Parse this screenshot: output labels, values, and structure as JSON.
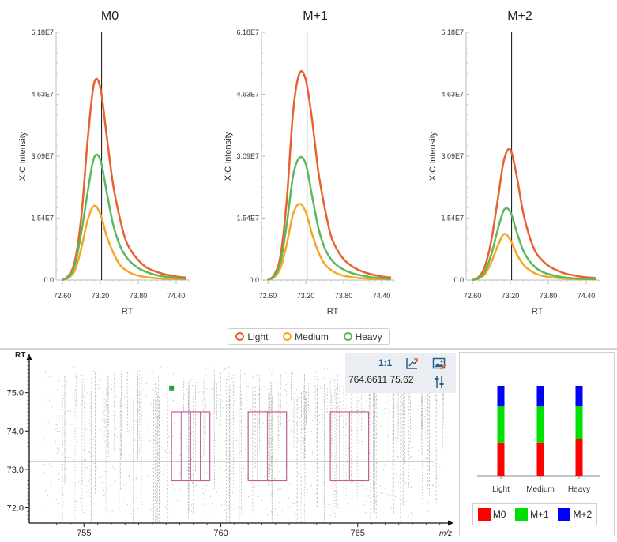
{
  "colors": {
    "light": "#e8622f",
    "medium": "#f5a623",
    "heavy": "#5cb85c",
    "m0": "#ff0000",
    "m1": "#00e000",
    "m2": "#0000ff",
    "box": "#c0609a"
  },
  "xic_legend": {
    "items": [
      {
        "label": "Light",
        "color": "#e8622f"
      },
      {
        "label": "Medium",
        "color": "#f5a623"
      },
      {
        "label": "Heavy",
        "color": "#5cb85c"
      }
    ]
  },
  "chart_data": [
    {
      "type": "line",
      "title": "M0",
      "xlabel": "RT",
      "ylabel": "XIC Intensity",
      "xticks": [
        "72.60",
        "73.20",
        "73.80",
        "74.40"
      ],
      "yticks": [
        "0.0",
        "1.54E7",
        "3.09E7",
        "4.63E7",
        "6.18E7"
      ],
      "xlim": [
        72.6,
        74.6
      ],
      "ylim": [
        0,
        61800000
      ],
      "marker_rt": 73.22,
      "x": [
        72.6,
        72.7,
        72.8,
        72.9,
        73.0,
        73.1,
        73.2,
        73.3,
        73.4,
        73.5,
        73.6,
        73.7,
        73.8,
        73.9,
        74.0,
        74.1,
        74.2,
        74.3,
        74.4,
        74.55
      ],
      "series": [
        {
          "name": "Light",
          "values": [
            0,
            1200000,
            5000000,
            16000000,
            35000000,
            49000000,
            48000000,
            36000000,
            24000000,
            16000000,
            10000000,
            7000000,
            5000000,
            3500000,
            2600000,
            2000000,
            1500000,
            1200000,
            900000,
            600000
          ]
        },
        {
          "name": "Medium",
          "values": [
            0,
            600000,
            2500000,
            8000000,
            15000000,
            18500000,
            16500000,
            11000000,
            7000000,
            4000000,
            2500000,
            1600000,
            1100000,
            800000,
            600000,
            450000,
            350000,
            300000,
            250000,
            200000
          ]
        },
        {
          "name": "Heavy",
          "values": [
            0,
            900000,
            4000000,
            12000000,
            22000000,
            30500000,
            30000000,
            22000000,
            14000000,
            9000000,
            6000000,
            4200000,
            3000000,
            2200000,
            1600000,
            1200000,
            900000,
            700000,
            500000,
            350000
          ]
        }
      ]
    },
    {
      "type": "line",
      "title": "M+1",
      "xlabel": "RT",
      "ylabel": "XIC Intensity",
      "xticks": [
        "72.60",
        "73.20",
        "73.80",
        "74.40"
      ],
      "yticks": [
        "0.0",
        "1.54E7",
        "3.09E7",
        "4.63E7",
        "6.18E7"
      ],
      "xlim": [
        72.6,
        74.6
      ],
      "ylim": [
        0,
        61800000
      ],
      "marker_rt": 73.22,
      "x": [
        72.6,
        72.7,
        72.8,
        72.9,
        73.0,
        73.1,
        73.2,
        73.3,
        73.4,
        73.5,
        73.6,
        73.7,
        73.8,
        73.9,
        74.0,
        74.1,
        74.2,
        74.3,
        74.4,
        74.55
      ],
      "series": [
        {
          "name": "Light",
          "values": [
            0,
            1300000,
            6000000,
            20000000,
            42000000,
            51500000,
            50000000,
            40000000,
            27000000,
            18000000,
            11000000,
            7500000,
            5200000,
            3800000,
            2800000,
            2100000,
            1600000,
            1200000,
            900000,
            600000
          ]
        },
        {
          "name": "Medium",
          "values": [
            0,
            700000,
            3000000,
            9000000,
            16500000,
            19000000,
            17000000,
            11500000,
            7000000,
            4000000,
            2500000,
            1600000,
            1100000,
            800000,
            600000,
            450000,
            350000,
            300000,
            250000,
            200000
          ]
        },
        {
          "name": "Heavy",
          "values": [
            0,
            1000000,
            4500000,
            14000000,
            26000000,
            30500000,
            29000000,
            21000000,
            13000000,
            8000000,
            5200000,
            3600000,
            2600000,
            1900000,
            1400000,
            1100000,
            800000,
            600000,
            450000,
            300000
          ]
        }
      ]
    },
    {
      "type": "line",
      "title": "M+2",
      "xlabel": "RT",
      "ylabel": "XIC Intensity",
      "xticks": [
        "72.60",
        "73.20",
        "73.80",
        "74.40"
      ],
      "yticks": [
        "0.0",
        "1.54E7",
        "3.09E7",
        "4.63E7",
        "6.18E7"
      ],
      "xlim": [
        72.6,
        74.6
      ],
      "ylim": [
        0,
        61800000
      ],
      "marker_rt": 73.22,
      "x": [
        72.6,
        72.7,
        72.8,
        72.9,
        73.0,
        73.1,
        73.2,
        73.3,
        73.4,
        73.5,
        73.6,
        73.7,
        73.8,
        73.9,
        74.0,
        74.1,
        74.2,
        74.3,
        74.4,
        74.55
      ],
      "series": [
        {
          "name": "Light",
          "values": [
            0,
            800000,
            3500000,
            10000000,
            20000000,
            30000000,
            32500000,
            26000000,
            17000000,
            11000000,
            7000000,
            5000000,
            3600000,
            2700000,
            2000000,
            1500000,
            1200000,
            900000,
            700000,
            500000
          ]
        },
        {
          "name": "Medium",
          "values": [
            0,
            400000,
            1500000,
            4500000,
            8500000,
            11500000,
            10000000,
            6500000,
            4000000,
            2500000,
            1600000,
            1100000,
            800000,
            600000,
            450000,
            350000,
            280000,
            220000,
            180000,
            140000
          ]
        },
        {
          "name": "Heavy",
          "values": [
            0,
            500000,
            2200000,
            6500000,
            12500000,
            17500000,
            17000000,
            12000000,
            7500000,
            4800000,
            3100000,
            2100000,
            1500000,
            1100000,
            800000,
            600000,
            450000,
            350000,
            280000,
            200000
          ]
        }
      ]
    },
    {
      "type": "scatter",
      "title": "",
      "xlabel": "m/z",
      "ylabel": "RT",
      "xticks": [
        "755",
        "760",
        "765"
      ],
      "yticks": [
        "72.0",
        "73.0",
        "74.0",
        "75.0"
      ],
      "xlim": [
        753.0,
        768.5
      ],
      "ylim": [
        71.6,
        76.0
      ],
      "cursor": {
        "mz": 764.6611,
        "rt": 75.62
      },
      "crosshair_rt": 73.2,
      "marker_point": {
        "mz": 758.2,
        "rt": 75.12
      },
      "isotope_boxes": [
        {
          "mz_start": 758.2,
          "mz_end": 759.6,
          "rt_start": 72.7,
          "rt_end": 74.5
        },
        {
          "mz_start": 761.0,
          "mz_end": 762.4,
          "rt_start": 72.7,
          "rt_end": 74.5
        },
        {
          "mz_start": 764.0,
          "mz_end": 765.4,
          "rt_start": 72.7,
          "rt_end": 74.5
        }
      ]
    },
    {
      "type": "bar",
      "title": "",
      "stacked": true,
      "categories": [
        "Light",
        "Medium",
        "Heavy"
      ],
      "series": [
        {
          "name": "M0",
          "values": [
            0.37,
            0.37,
            0.41
          ]
        },
        {
          "name": "M+1",
          "values": [
            0.4,
            0.4,
            0.37
          ]
        },
        {
          "name": "M+2",
          "values": [
            0.23,
            0.23,
            0.22
          ]
        }
      ],
      "ylim": [
        0,
        1
      ]
    }
  ],
  "map_toolbar": {
    "ratio_label": "1:1",
    "coord_text": "764.6611 75.62",
    "fit_icon": "axis-fit-icon",
    "export_icon": "image-export-icon",
    "settings_icon": "sliders-icon"
  },
  "bar_legend": {
    "items": [
      {
        "label": "M0",
        "color": "#ff0000"
      },
      {
        "label": "M+1",
        "color": "#00e000"
      },
      {
        "label": "M+2",
        "color": "#0000ff"
      }
    ]
  }
}
